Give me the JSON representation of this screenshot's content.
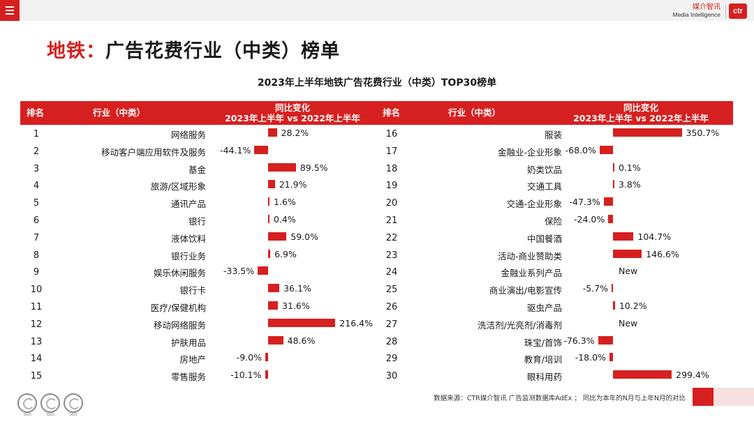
{
  "header": {
    "brand_cn": "媒介智讯",
    "brand_en": "Media Intelligence",
    "logo_text": "ctr"
  },
  "title": {
    "highlight": "地铁：",
    "main": "广告花费行业（中类）榜单"
  },
  "subtitle": "2023年上半年地铁广告花费行业（中类）TOP30榜单",
  "table_header": {
    "rank": "排名",
    "industry": "行业（中类）",
    "yoy_line1": "同比变化",
    "yoy_line2": "2023年上半年 vs 2022年上半年"
  },
  "footer": {
    "source": "数据来源：CTR媒介智讯 广告监测数据库AdEx ；  同比为本年的N月与上年N月的对比",
    "sgs_label": "SGS"
  },
  "colors": {
    "accent": "#d6201f"
  },
  "chart_data": {
    "type": "bar",
    "title": "2023年上半年地铁广告花费行业（中类）TOP30榜单",
    "xlabel": "",
    "ylabel": "同比变化 2023年上半年 vs 2022年上半年",
    "rows": [
      {
        "rank": "1",
        "name": "网络服务",
        "value": 28.2,
        "label": "28.2%"
      },
      {
        "rank": "2",
        "name": "移动客户端应用软件及服务",
        "value": -44.1,
        "label": "-44.1%"
      },
      {
        "rank": "3",
        "name": "基金",
        "value": 89.5,
        "label": "89.5%"
      },
      {
        "rank": "4",
        "name": "旅游/区域形象",
        "value": 21.9,
        "label": "21.9%"
      },
      {
        "rank": "5",
        "name": "通讯产品",
        "value": 1.6,
        "label": "1.6%"
      },
      {
        "rank": "6",
        "name": "银行",
        "value": 0.4,
        "label": "0.4%"
      },
      {
        "rank": "7",
        "name": "液体饮料",
        "value": 59.0,
        "label": "59.0%"
      },
      {
        "rank": "8",
        "name": "银行业务",
        "value": 6.9,
        "label": "6.9%"
      },
      {
        "rank": "9",
        "name": "娱乐休闲服务",
        "value": -33.5,
        "label": "-33.5%"
      },
      {
        "rank": "10",
        "name": "银行卡",
        "value": 36.1,
        "label": "36.1%"
      },
      {
        "rank": "11",
        "name": "医疗/保健机构",
        "value": 31.6,
        "label": "31.6%"
      },
      {
        "rank": "12",
        "name": "移动网络服务",
        "value": 216.4,
        "label": "216.4%"
      },
      {
        "rank": "13",
        "name": "护肤用品",
        "value": 48.6,
        "label": "48.6%"
      },
      {
        "rank": "14",
        "name": "房地产",
        "value": -9.0,
        "label": "-9.0%"
      },
      {
        "rank": "15",
        "name": "零售服务",
        "value": -10.1,
        "label": "-10.1%"
      },
      {
        "rank": "16",
        "name": "服装",
        "value": 350.7,
        "label": "350.7%"
      },
      {
        "rank": "17",
        "name": "金融业-企业形象",
        "value": -68.0,
        "label": "-68.0%"
      },
      {
        "rank": "18",
        "name": "奶类饮品",
        "value": 0.1,
        "label": "0.1%"
      },
      {
        "rank": "19",
        "name": "交通工具",
        "value": 3.8,
        "label": "3.8%"
      },
      {
        "rank": "20",
        "name": "交通-企业形象",
        "value": -47.3,
        "label": "-47.3%"
      },
      {
        "rank": "21",
        "name": "保险",
        "value": -24.0,
        "label": "-24.0%"
      },
      {
        "rank": "22",
        "name": "中国餐酒",
        "value": 104.7,
        "label": "104.7%"
      },
      {
        "rank": "23",
        "name": "活动-商业赞助类",
        "value": 146.6,
        "label": "146.6%"
      },
      {
        "rank": "24",
        "name": "金融业系列产品",
        "value": null,
        "label": "New"
      },
      {
        "rank": "25",
        "name": "商业演出/电影宣传",
        "value": -5.7,
        "label": "-5.7%"
      },
      {
        "rank": "26",
        "name": "驱虫产品",
        "value": 10.2,
        "label": "10.2%"
      },
      {
        "rank": "27",
        "name": "洗洁剂/光亮剂/消毒剂",
        "value": null,
        "label": "New"
      },
      {
        "rank": "28",
        "name": "珠宝/首饰",
        "value": -76.3,
        "label": "-76.3%"
      },
      {
        "rank": "29",
        "name": "教育/培训",
        "value": -18.0,
        "label": "-18.0%"
      },
      {
        "rank": "30",
        "name": "眼科用药",
        "value": 299.4,
        "label": "299.4%"
      }
    ]
  }
}
